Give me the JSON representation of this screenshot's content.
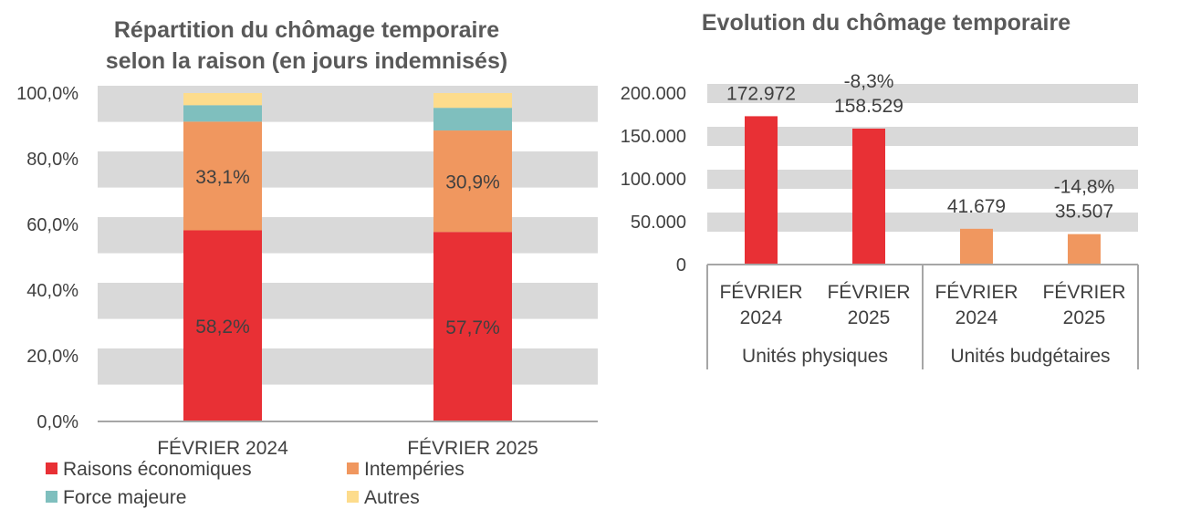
{
  "chart_data": [
    {
      "type": "bar",
      "stacked": true,
      "title_lines": [
        "Répartition du chômage temporaire",
        "selon la raison (en jours indemnisés)"
      ],
      "categories": [
        "FÉVRIER 2024",
        "FÉVRIER 2025"
      ],
      "series": [
        {
          "name": "Raisons économiques",
          "color": "#e83035",
          "values": [
            58.2,
            57.7
          ],
          "labels": [
            "58,2%",
            "57,7%"
          ]
        },
        {
          "name": "Intempéries",
          "color": "#f0975f",
          "values": [
            33.1,
            30.9
          ],
          "labels": [
            "33,1%",
            "30,9%"
          ]
        },
        {
          "name": "Force majeure",
          "color": "#7fbfbe",
          "values": [
            5.0,
            6.9
          ],
          "labels": [
            "",
            ""
          ]
        },
        {
          "name": "Autres",
          "color": "#fddc8c",
          "values": [
            3.7,
            4.5
          ],
          "labels": [
            "",
            ""
          ]
        }
      ],
      "ylim": [
        0,
        100
      ],
      "yticks": [
        "0,0%",
        "20,0%",
        "40,0%",
        "60,0%",
        "80,0%",
        "100,0%"
      ],
      "legend_position": "bottom",
      "grid": true
    },
    {
      "type": "bar",
      "title": "Evolution du chômage temporaire",
      "groups": [
        "Unités physiques",
        "Unités budgétaires"
      ],
      "bars": [
        {
          "cat_line1": "FÉVRIER",
          "cat_line2": "2024",
          "group": 0,
          "value": 172972,
          "label": "172.972",
          "change": "",
          "color": "#e83035"
        },
        {
          "cat_line1": "FÉVRIER",
          "cat_line2": "2025",
          "group": 0,
          "value": 158529,
          "label": "158.529",
          "change": "-8,3%",
          "color": "#e83035"
        },
        {
          "cat_line1": "FÉVRIER",
          "cat_line2": "2024",
          "group": 1,
          "value": 41679,
          "label": "41.679",
          "change": "",
          "color": "#f0975f"
        },
        {
          "cat_line1": "FÉVRIER",
          "cat_line2": "2025",
          "group": 1,
          "value": 35507,
          "label": "35.507",
          "change": "-14,8%",
          "color": "#f0975f"
        }
      ],
      "ylim": [
        0,
        200000
      ],
      "yticks": [
        "0",
        "50.000",
        "100.000",
        "150.000",
        "200.000"
      ],
      "grid": true
    }
  ],
  "colors": {
    "grid": "#d9d9d9",
    "axis": "#a6a6a6",
    "text": "#404040",
    "title": "#595959"
  }
}
